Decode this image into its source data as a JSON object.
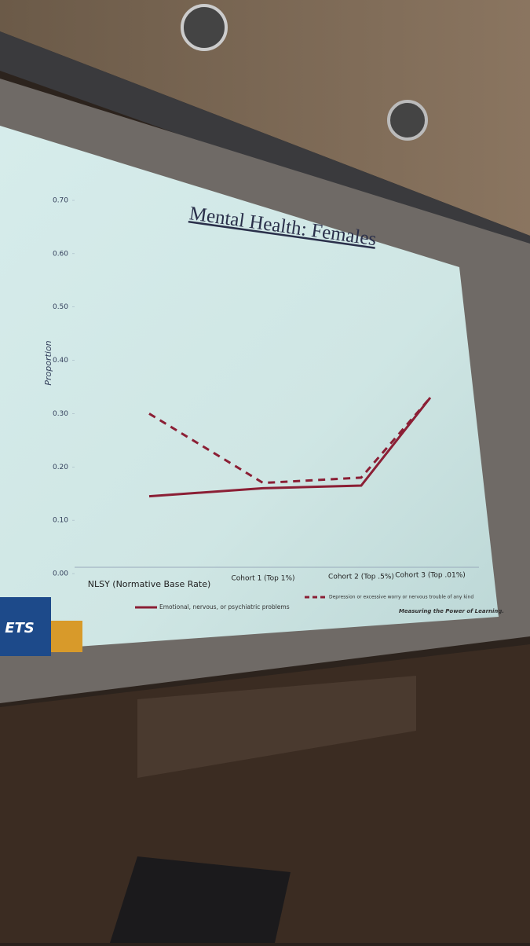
{
  "chart_data": {
    "type": "line",
    "title": "Mental Health: Females",
    "y_label": "Proportion",
    "categories": [
      "NLSY (Normative Base Rate)",
      "Cohort 1 (Top 1%)",
      "Cohort 2 (Top .5%)",
      "Cohort 3 (Top .01%)"
    ],
    "series": [
      {
        "name": "Emotional, nervous, or psychiatric problems",
        "color": "#8b1f35",
        "dash": false,
        "values": [
          0.145,
          0.16,
          0.165,
          0.33
        ]
      },
      {
        "name": "Depression or excessive worry or nervous trouble of any kind",
        "color": "#8b1f35",
        "dash": true,
        "values": [
          0.3,
          0.17,
          0.18,
          0.33
        ]
      }
    ],
    "ylim": [
      0,
      0.7
    ],
    "yticks": [
      {
        "value": 0,
        "label": "0.00"
      },
      {
        "value": 0.1,
        "label": "0.10"
      },
      {
        "value": 0.2,
        "label": "0.20"
      },
      {
        "value": 0.3,
        "label": "0.30"
      },
      {
        "value": 0.4,
        "label": "0.40"
      },
      {
        "value": 0.5,
        "label": "0.50"
      },
      {
        "value": 0.6,
        "label": "0.60"
      },
      {
        "value": 0.7,
        "label": "0.70"
      }
    ]
  },
  "slide": {
    "logo": "ETS",
    "tagline": "Measuring the Power of Learning."
  }
}
